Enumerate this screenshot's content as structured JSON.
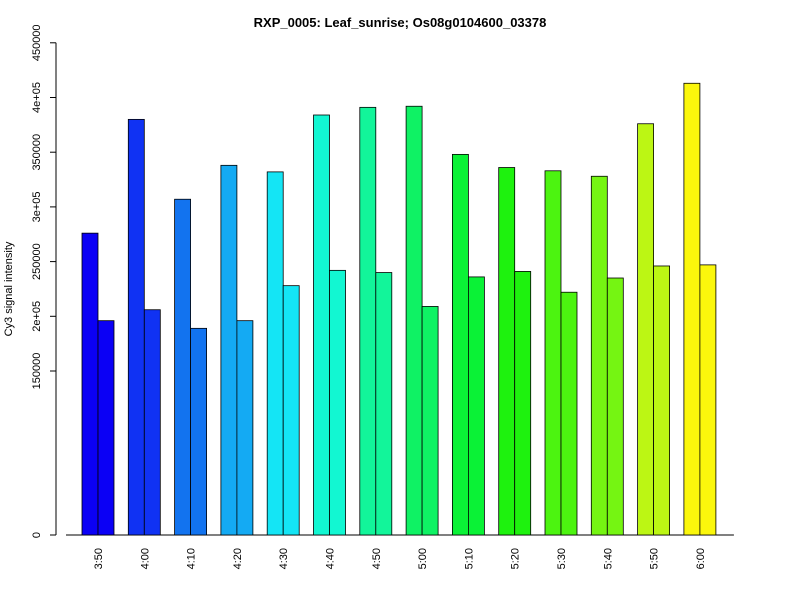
{
  "chart_data": {
    "type": "bar",
    "title": "RXP_0005: Leaf_sunrise; Os08g0104600_03378",
    "xlabel": "",
    "ylabel": "Cy3 signal intensity",
    "ylim": [
      0,
      450000
    ],
    "y_ticks": [
      {
        "value": 0,
        "label": "0"
      },
      {
        "value": 150000,
        "label": "150000"
      },
      {
        "value": 200000,
        "label": "2e+05"
      },
      {
        "value": 250000,
        "label": "250000"
      },
      {
        "value": 300000,
        "label": "3e+05"
      },
      {
        "value": 350000,
        "label": "350000"
      },
      {
        "value": 400000,
        "label": "4e+05"
      },
      {
        "value": 450000,
        "label": "450000"
      }
    ],
    "y_axis_broken": true,
    "grid": false,
    "categories": [
      "3:50",
      "4:00",
      "4:10",
      "4:20",
      "4:30",
      "4:40",
      "4:50",
      "5:00",
      "5:10",
      "5:20",
      "5:30",
      "5:40",
      "5:50",
      "6:00"
    ],
    "series": [
      {
        "values": [
          276000,
          380000,
          307000,
          338000,
          332000,
          384000,
          391000,
          392000,
          348000,
          336000,
          333000,
          328000,
          376000,
          413000
        ]
      },
      {
        "values": [
          196000,
          206000,
          189000,
          196000,
          228000,
          242000,
          240000,
          209000,
          236000,
          241000,
          222000,
          235000,
          246000,
          247000
        ]
      }
    ],
    "colors": [
      "#0b00f5",
      "#1032f3",
      "#1273ef",
      "#14aaf3",
      "#14e5f5",
      "#12f7d2",
      "#12f59a",
      "#0ff264",
      "#0af236",
      "#1ef20e",
      "#4cf410",
      "#75f512",
      "#bcf614",
      "#fbf70c"
    ]
  }
}
